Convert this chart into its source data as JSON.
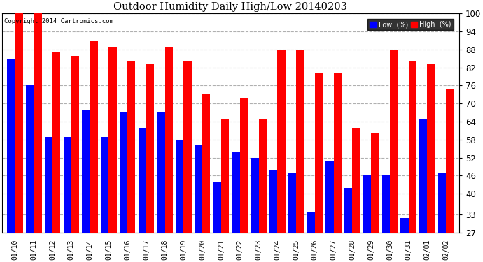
{
  "title": "Outdoor Humidity Daily High/Low 20140203",
  "copyright": "Copyright 2014 Cartronics.com",
  "dates": [
    "01/10",
    "01/11",
    "01/12",
    "01/13",
    "01/14",
    "01/15",
    "01/16",
    "01/17",
    "01/18",
    "01/19",
    "01/20",
    "01/21",
    "01/22",
    "01/23",
    "01/24",
    "01/25",
    "01/26",
    "01/27",
    "01/28",
    "01/29",
    "01/30",
    "01/31",
    "02/01",
    "02/02"
  ],
  "high": [
    100,
    100,
    87,
    86,
    91,
    89,
    84,
    83,
    89,
    84,
    73,
    65,
    72,
    65,
    88,
    88,
    80,
    80,
    62,
    60,
    88,
    84,
    83,
    75
  ],
  "low": [
    85,
    76,
    59,
    59,
    68,
    59,
    67,
    62,
    67,
    58,
    56,
    44,
    54,
    52,
    48,
    47,
    34,
    51,
    42,
    46,
    46,
    32,
    65,
    47
  ],
  "high_color": "#ff0000",
  "low_color": "#0000ff",
  "bg_color": "#ffffff",
  "grid_color": "#b0b0b0",
  "yticks": [
    27,
    33,
    40,
    46,
    52,
    58,
    64,
    70,
    76,
    82,
    88,
    94,
    100
  ],
  "ymin": 27,
  "ymax": 100,
  "figwidth": 6.9,
  "figheight": 3.75,
  "dpi": 100
}
